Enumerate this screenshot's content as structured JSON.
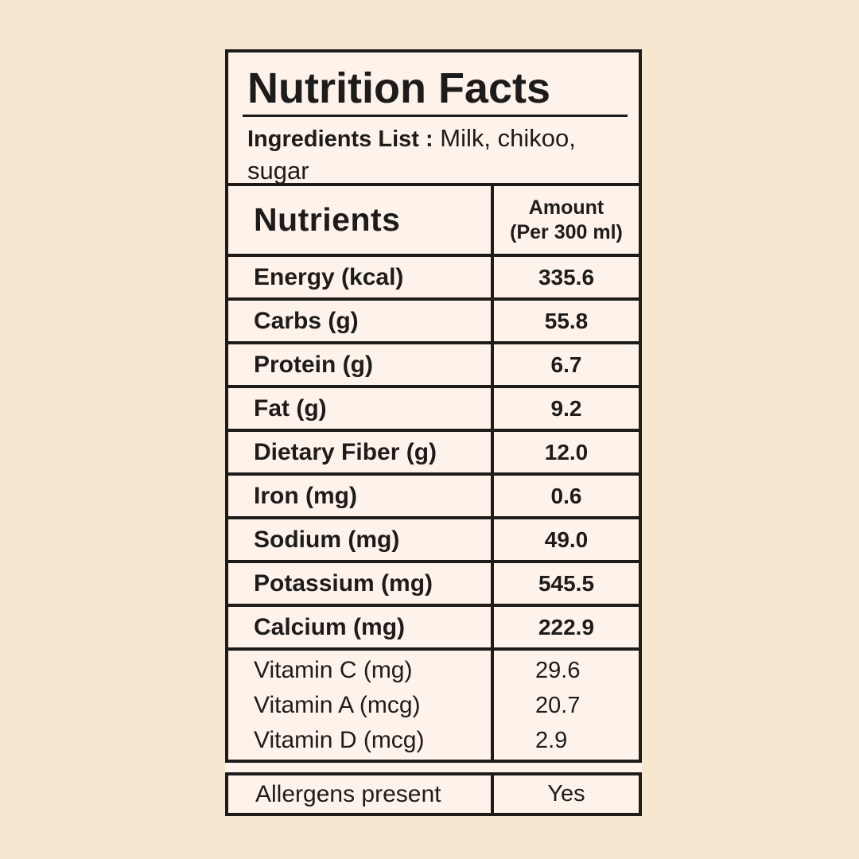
{
  "colors": {
    "page_background": "#f8e7d0",
    "panel_background": "#fdf3eb",
    "ink": "#1e1c1a"
  },
  "header": {
    "title": "Nutrition Facts",
    "ingredients_label": "Ingredients List :",
    "ingredients_value": "Milk, chikoo, sugar"
  },
  "table": {
    "column_headers": {
      "nutrients": "Nutrients",
      "amount_line1": "Amount",
      "amount_line2": "(Per 300 ml)"
    },
    "rows": [
      {
        "label": "Energy (kcal)",
        "value": "335.6"
      },
      {
        "label": "Carbs (g)",
        "value": "55.8"
      },
      {
        "label": "Protein (g)",
        "value": "6.7"
      },
      {
        "label": "Fat (g)",
        "value": "9.2"
      },
      {
        "label": "Dietary Fiber (g)",
        "value": "12.0"
      },
      {
        "label": "Iron (mg)",
        "value": "0.6"
      },
      {
        "label": "Sodium (mg)",
        "value": "49.0"
      },
      {
        "label": "Potassium (mg)",
        "value": "545.5"
      },
      {
        "label": "Calcium (mg)",
        "value": "222.9"
      }
    ],
    "vitamins": [
      {
        "label": "Vitamin C (mg)",
        "value": "29.6"
      },
      {
        "label": "Vitamin A (mcg)",
        "value": "20.7"
      },
      {
        "label": "Vitamin D (mcg)",
        "value": "2.9"
      }
    ],
    "allergens": {
      "label": "Allergens present",
      "value": "Yes"
    }
  }
}
